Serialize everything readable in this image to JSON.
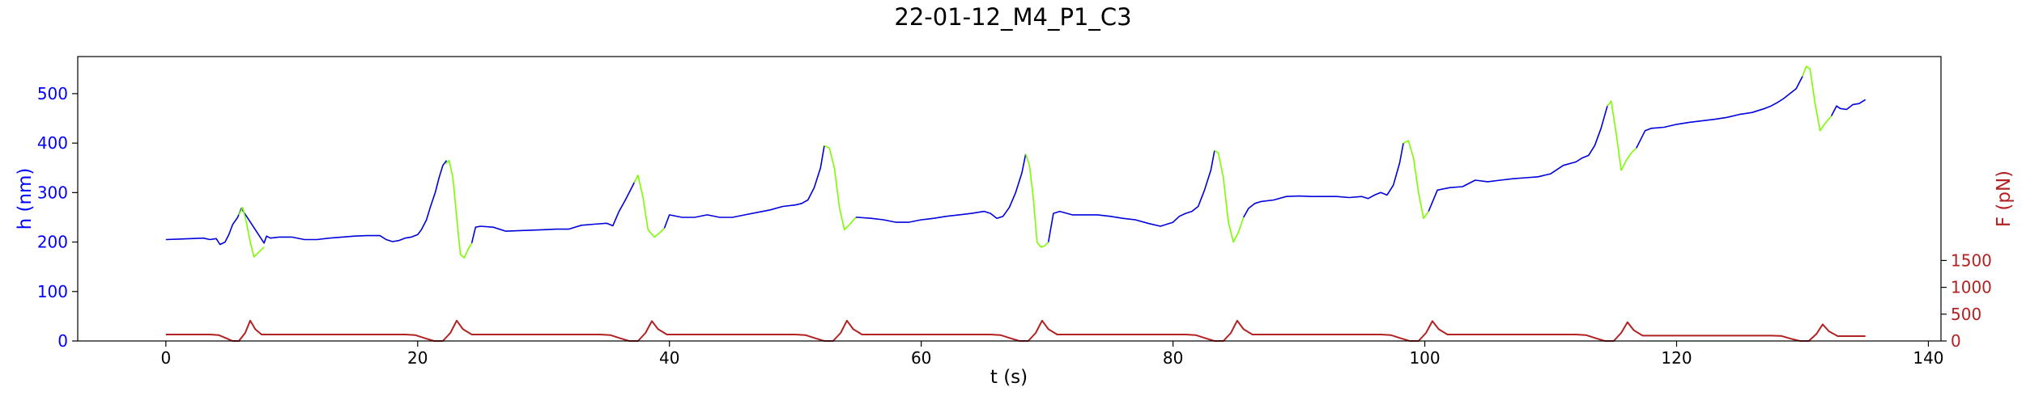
{
  "chart_data": {
    "type": "line",
    "title": "22-01-12_M4_P1_C3",
    "xlabel": "t (s)",
    "ylabel": "h (nm)",
    "y2label": "F (pN)",
    "xlim": [
      -7,
      141
    ],
    "ylim": [
      0,
      575
    ],
    "y2lim": [
      0,
      5300
    ],
    "xticks": [
      0,
      20,
      40,
      60,
      80,
      100,
      120,
      140
    ],
    "yticks": [
      0,
      100,
      200,
      300,
      400,
      500
    ],
    "y2ticks": [
      0,
      500,
      1000,
      1500
    ],
    "grid": false,
    "colors": {
      "h_axis": "#0000ff",
      "F_axis": "#b22222",
      "height": "#0000dd",
      "push": "#7cfc00",
      "force": "#b22222"
    },
    "series": [
      {
        "axis": "h",
        "color": "#0000dd",
        "x": [
          0,
          1,
          2,
          3,
          3.5,
          4,
          4.3,
          4.7,
          5,
          5.3,
          5.7,
          6,
          7.8,
          8,
          8.3,
          9,
          10,
          11,
          12,
          13,
          14,
          15,
          16,
          17,
          17.5,
          18,
          18.5,
          19,
          19.5,
          20,
          20.3,
          20.7,
          21,
          21.4,
          21.7,
          22,
          22.3
        ],
        "y": [
          205,
          206,
          207,
          208,
          205,
          207,
          195,
          200,
          215,
          235,
          250,
          268,
          198,
          212,
          208,
          210,
          210,
          205,
          205,
          208,
          210,
          212,
          213,
          213,
          205,
          201,
          203,
          208,
          210,
          215,
          225,
          245,
          270,
          300,
          330,
          355,
          365
        ],
        "segments": [
          [
            0,
            12
          ],
          [
            13,
            37
          ]
        ]
      },
      {
        "axis": "h",
        "color": "#7cfc00",
        "x": [
          5.8,
          6.1,
          6.4,
          6.7,
          7,
          7.4,
          7.8
        ],
        "y": [
          255,
          270,
          240,
          200,
          170,
          180,
          190
        ]
      },
      {
        "axis": "h",
        "color": "#7cfc00",
        "x": [
          22.2,
          22.5,
          22.8,
          23.1,
          23.4,
          23.7,
          24,
          24.3
        ],
        "y": [
          358,
          365,
          330,
          250,
          175,
          168,
          185,
          198
        ]
      },
      {
        "axis": "h",
        "color": "#0000dd",
        "x": [
          24.3,
          24.6,
          25,
          26,
          27,
          30,
          31,
          32,
          33,
          34,
          35,
          35.5,
          36,
          36.5,
          37,
          37.3
        ],
        "y": [
          198,
          230,
          232,
          230,
          222,
          225,
          226,
          226,
          234,
          236,
          238,
          233,
          262,
          285,
          310,
          325
        ],
        "segments": [
          [
            0,
            16
          ]
        ]
      },
      {
        "axis": "h",
        "color": "#7cfc00",
        "x": [
          37.2,
          37.5,
          37.9,
          38.3,
          38.8,
          39.2,
          39.6
        ],
        "y": [
          320,
          335,
          290,
          225,
          210,
          218,
          228
        ]
      },
      {
        "axis": "h",
        "color": "#0000dd",
        "x": [
          39.6,
          40,
          41,
          42,
          43,
          44,
          45,
          46,
          47,
          48,
          49,
          50,
          50.5,
          51,
          51.5,
          52,
          52.3
        ],
        "y": [
          228,
          255,
          250,
          250,
          255,
          250,
          250,
          255,
          260,
          265,
          272,
          275,
          278,
          285,
          310,
          350,
          395
        ],
        "segments": [
          [
            0,
            17
          ]
        ]
      },
      {
        "axis": "h",
        "color": "#7cfc00",
        "x": [
          52.3,
          52.7,
          53.1,
          53.5,
          53.9,
          54.3,
          54.8
        ],
        "y": [
          395,
          390,
          350,
          270,
          225,
          235,
          250
        ]
      },
      {
        "axis": "h",
        "color": "#0000dd",
        "x": [
          54.8,
          55,
          56,
          57,
          58,
          59,
          60,
          61,
          62,
          63,
          64,
          65,
          65.5,
          66,
          66.5,
          67,
          67.5,
          68,
          68.3
        ],
        "y": [
          250,
          250,
          248,
          245,
          240,
          240,
          245,
          248,
          252,
          255,
          258,
          262,
          258,
          248,
          252,
          270,
          300,
          340,
          378
        ],
        "segments": [
          [
            0,
            19
          ]
        ]
      },
      {
        "axis": "h",
        "color": "#7cfc00",
        "x": [
          68.3,
          68.6,
          68.9,
          69.2,
          69.5,
          69.8,
          70.1
        ],
        "y": [
          378,
          355,
          290,
          200,
          190,
          192,
          200
        ]
      },
      {
        "axis": "h",
        "color": "#0000dd",
        "x": [
          70.1,
          70.5,
          71,
          72,
          73,
          74,
          75,
          76,
          77,
          78,
          79,
          80,
          80.5,
          81,
          81.5,
          82,
          82.5,
          83,
          83.3
        ],
        "y": [
          200,
          258,
          262,
          255,
          255,
          255,
          252,
          248,
          245,
          238,
          232,
          240,
          252,
          258,
          262,
          272,
          305,
          345,
          385
        ],
        "segments": [
          [
            0,
            19
          ]
        ]
      },
      {
        "axis": "h",
        "color": "#7cfc00",
        "x": [
          83.3,
          83.6,
          84,
          84.4,
          84.8,
          85.2,
          85.6
        ],
        "y": [
          385,
          380,
          330,
          240,
          200,
          220,
          250
        ]
      },
      {
        "axis": "h",
        "color": "#0000dd",
        "x": [
          85.6,
          86,
          86.5,
          87,
          88,
          89,
          90,
          91,
          92,
          93,
          94,
          95,
          95.5,
          96,
          96.5,
          97,
          97.5,
          98,
          98.3
        ],
        "y": [
          250,
          268,
          278,
          282,
          285,
          292,
          293,
          292,
          292,
          292,
          290,
          292,
          288,
          295,
          300,
          295,
          315,
          360,
          400
        ],
        "segments": [
          [
            0,
            19
          ]
        ]
      },
      {
        "axis": "h",
        "color": "#7cfc00",
        "x": [
          98.3,
          98.7,
          99.1,
          99.5,
          99.9,
          100.3
        ],
        "y": [
          400,
          405,
          370,
          300,
          248,
          262
        ]
      },
      {
        "axis": "h",
        "color": "#0000dd",
        "x": [
          100.3,
          101,
          102,
          103,
          104,
          105,
          106,
          107,
          108,
          109,
          110,
          111,
          112,
          112.5,
          113,
          113.5,
          114,
          114.5
        ],
        "y": [
          262,
          305,
          310,
          312,
          325,
          322,
          325,
          328,
          330,
          332,
          338,
          355,
          362,
          370,
          375,
          395,
          430,
          475
        ],
        "segments": [
          [
            0,
            18
          ]
        ]
      },
      {
        "axis": "h",
        "color": "#7cfc00",
        "x": [
          114.5,
          114.8,
          115.2,
          115.6,
          116,
          116.4,
          116.8
        ],
        "y": [
          475,
          485,
          420,
          345,
          365,
          380,
          390
        ]
      },
      {
        "axis": "h",
        "color": "#0000dd",
        "x": [
          116.8,
          117.5,
          118,
          119,
          120,
          121,
          122,
          123,
          124,
          125,
          126,
          127,
          127.5,
          128,
          128.5,
          129,
          129.5,
          130
        ],
        "y": [
          390,
          425,
          430,
          432,
          438,
          442,
          445,
          448,
          452,
          458,
          462,
          470,
          475,
          482,
          490,
          500,
          510,
          535
        ],
        "segments": [
          [
            0,
            18
          ]
        ]
      },
      {
        "axis": "h",
        "color": "#7cfc00",
        "x": [
          130,
          130.3,
          130.6,
          131,
          131.4,
          131.8,
          132.3
        ],
        "y": [
          535,
          555,
          550,
          480,
          425,
          440,
          455
        ]
      },
      {
        "axis": "h",
        "color": "#0000dd",
        "x": [
          132.3,
          132.7,
          133,
          133.5,
          134,
          134.5,
          135
        ],
        "y": [
          455,
          475,
          470,
          468,
          478,
          480,
          488
        ],
        "segments": [
          [
            0,
            7
          ]
        ]
      },
      {
        "axis": "F",
        "color": "#b22222",
        "x": [
          0,
          3.5,
          4.2,
          4.8,
          5.3,
          5.8,
          6.3,
          6.7,
          7.1,
          7.6,
          8.2,
          9,
          19,
          19.8,
          20.6,
          21.3,
          22,
          22.6,
          23.1,
          23.6,
          24.3,
          25,
          34.5,
          35.3,
          36.1,
          36.8,
          37.5,
          38.1,
          38.6,
          39.1,
          39.8,
          40.5,
          50,
          50.8,
          51.6,
          52.3,
          53,
          53.6,
          54.1,
          54.6,
          55.3,
          56,
          65.5,
          66.3,
          67.1,
          67.8,
          68.5,
          69.1,
          69.6,
          70.1,
          70.8,
          71.5,
          81,
          81.8,
          82.6,
          83.3,
          84,
          84.6,
          85.1,
          85.6,
          86.3,
          87,
          96.5,
          97.3,
          98.1,
          98.8,
          99.5,
          100.1,
          100.6,
          101.1,
          101.8,
          102.5,
          112,
          112.8,
          113.6,
          114.3,
          115,
          115.6,
          116.1,
          116.6,
          117.3,
          118,
          127.5,
          128.3,
          129.1,
          129.8,
          130.5,
          131.1,
          131.6,
          132.1,
          132.8,
          133.5,
          135
        ],
        "y": [
          120,
          120,
          110,
          50,
          0,
          0,
          150,
          380,
          220,
          120,
          120,
          120,
          120,
          110,
          50,
          0,
          0,
          150,
          380,
          220,
          120,
          120,
          120,
          110,
          50,
          0,
          0,
          150,
          370,
          220,
          120,
          120,
          120,
          110,
          50,
          0,
          0,
          150,
          380,
          220,
          120,
          120,
          120,
          110,
          50,
          0,
          0,
          150,
          380,
          220,
          120,
          120,
          120,
          110,
          50,
          0,
          0,
          150,
          380,
          220,
          120,
          120,
          120,
          110,
          50,
          0,
          0,
          150,
          370,
          220,
          120,
          120,
          120,
          110,
          50,
          0,
          0,
          150,
          350,
          200,
          100,
          100,
          100,
          95,
          40,
          0,
          0,
          130,
          310,
          180,
          90,
          90,
          90
        ]
      }
    ]
  }
}
